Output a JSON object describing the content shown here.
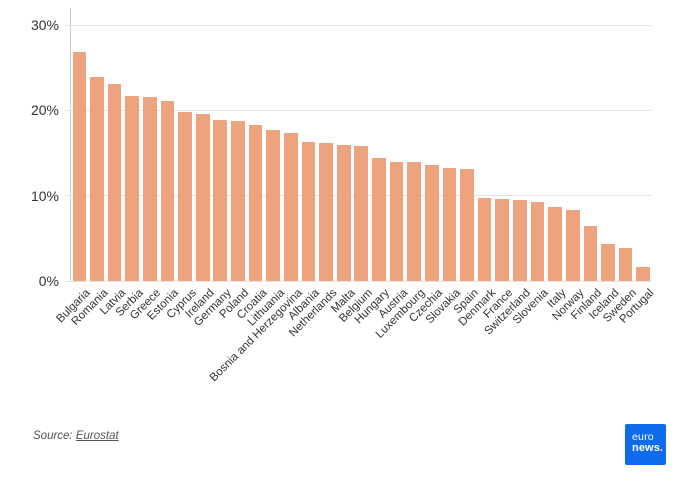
{
  "chart_data": {
    "type": "bar",
    "title": "",
    "xlabel": "",
    "ylabel": "",
    "ylim": [
      0,
      30
    ],
    "grid": true,
    "legend": "none",
    "bar_color": "#EDA37E",
    "yticks": [
      {
        "value": 0,
        "label": "0%"
      },
      {
        "value": 10,
        "label": "10%"
      },
      {
        "value": 20,
        "label": "20%"
      },
      {
        "value": 30,
        "label": "30%"
      }
    ],
    "categories": [
      "Bulgaria",
      "Romania",
      "Latvia",
      "Serbia",
      "Greece",
      "Estonia",
      "Cyprus",
      "Ireland",
      "Germany",
      "Poland",
      "Croatia",
      "Lithuania",
      "Bosnia and Herzegovina",
      "Albania",
      "Netherlands",
      "Malta",
      "Belgium",
      "Hungary",
      "Austria",
      "Luxembourg",
      "Czechia",
      "Slovakia",
      "Spain",
      "Denmark",
      "France",
      "Switzerland",
      "Slovenia",
      "Italy",
      "Norway",
      "Finland",
      "Iceland",
      "Sweden",
      "Portugal"
    ],
    "values": [
      26.8,
      23.9,
      23.1,
      21.7,
      21.6,
      21.1,
      19.8,
      19.6,
      18.9,
      18.8,
      18.3,
      17.7,
      17.4,
      16.3,
      16.2,
      15.9,
      15.8,
      14.4,
      13.9,
      13.9,
      13.6,
      13.2,
      13.1,
      9.7,
      9.6,
      9.5,
      9.3,
      8.7,
      8.3,
      6.4,
      4.3,
      3.9,
      1.7
    ]
  },
  "footer": {
    "source_prefix": "Source: ",
    "source_link": "Eurostat"
  },
  "logo": {
    "line1": "euro",
    "line2": "news.",
    "color": "#0F6AEC"
  }
}
